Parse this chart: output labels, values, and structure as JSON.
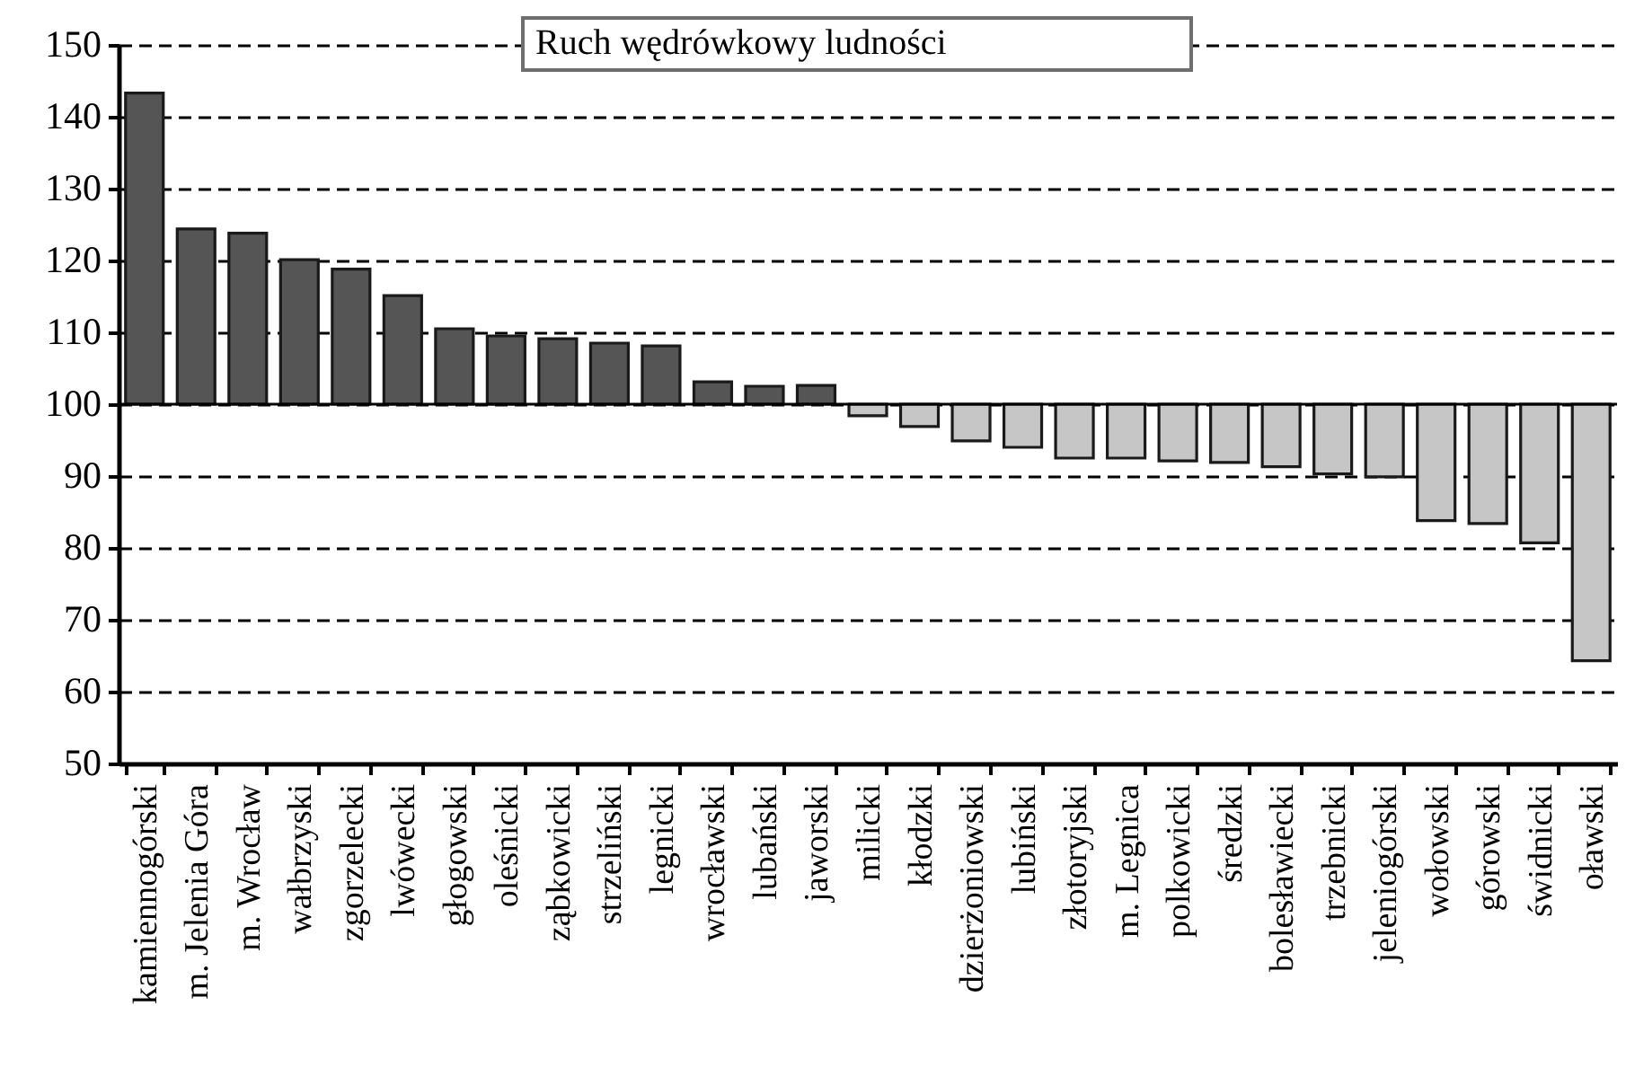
{
  "chart_data": {
    "type": "bar",
    "title": "Ruch wędrówkowy ludności",
    "categories": [
      "kamiennogórski",
      "m. Jelenia Góra",
      "m. Wrocław",
      "wałbrzyski",
      "zgorzelecki",
      "lwówecki",
      "głogowski",
      "oleśnicki",
      "ząbkowicki",
      "strzeliński",
      "legnicki",
      "wrocławski",
      "lubański",
      "jaworski",
      "milicki",
      "kłodzki",
      "dzierżoniowski",
      "lubiński",
      "złotoryjski",
      "m. Legnica",
      "polkowicki",
      "średzki",
      "bolesławiecki",
      "trzebnicki",
      "jeleniogórski",
      "wołowski",
      "górowski",
      "świdnicki",
      "oławski"
    ],
    "values": [
      43.3,
      24.4,
      23.8,
      20.1,
      18.8,
      15.1,
      10.5,
      9.5,
      9.1,
      8.5,
      8.1,
      3.1,
      2.5,
      2.6,
      -1.6,
      -3.1,
      -5.1,
      -6.0,
      -7.5,
      -7.5,
      -7.9,
      -8.1,
      -8.7,
      -9.7,
      -10.1,
      -16.2,
      -16.6,
      -19.3,
      -35.7
    ],
    "base": [
      100,
      100,
      100,
      100,
      100,
      100,
      100,
      100,
      100,
      100,
      100,
      100,
      100,
      100,
      100,
      100,
      100,
      100,
      100,
      100,
      100,
      100,
      100,
      100,
      100,
      100,
      100,
      100,
      100
    ],
    "colors": [
      "#555555",
      "#555555",
      "#555555",
      "#555555",
      "#555555",
      "#555555",
      "#555555",
      "#555555",
      "#555555",
      "#555555",
      "#555555",
      "#555555",
      "#555555",
      "#555555",
      "#c6c6c6",
      "#c6c6c6",
      "#c6c6c6",
      "#c6c6c6",
      "#c6c6c6",
      "#c6c6c6",
      "#c6c6c6",
      "#c6c6c6",
      "#c6c6c6",
      "#c6c6c6",
      "#c6c6c6",
      "#c6c6c6",
      "#c6c6c6",
      "#c6c6c6",
      "#c6c6c6"
    ],
    "ylim": [
      50,
      150
    ],
    "yticks": [
      50,
      60,
      70,
      80,
      90,
      100,
      110,
      120,
      130,
      140,
      150
    ],
    "grid": "y",
    "ref_lines": [
      {
        "axis": "y",
        "value": 100,
        "color": "#000000"
      }
    ]
  }
}
